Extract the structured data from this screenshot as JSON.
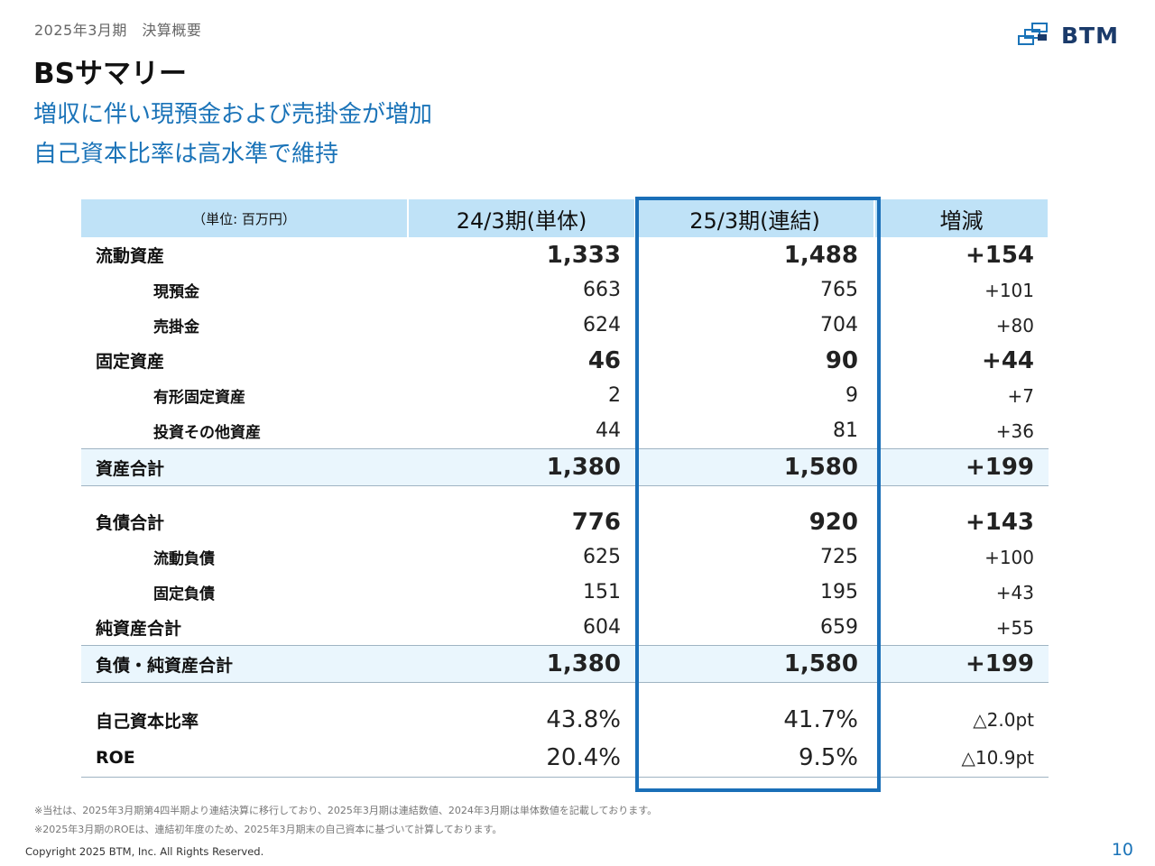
{
  "header": {
    "breadcrumb": "2025年3月期　決算概要",
    "title": "BSサマリー",
    "headline_1": "増収に伴い現預金および売掛金が増加",
    "headline_2": "自己資本比率は高水準で維持",
    "logo_text": "BTM"
  },
  "table": {
    "columns": [
      "（単位: 百万円）",
      "24/3期(単体)",
      "25/3期(連結)",
      "増減"
    ],
    "rows": [
      {
        "label": "流動資産",
        "v1": "1,333",
        "v2": "1,488",
        "diff": "+154"
      },
      {
        "label": "現預金",
        "v1": "663",
        "v2": "765",
        "diff": "+101"
      },
      {
        "label": "売掛金",
        "v1": "624",
        "v2": "704",
        "diff": "+80"
      },
      {
        "label": "固定資産",
        "v1": "46",
        "v2": "90",
        "diff": "+44"
      },
      {
        "label": "有形固定資産",
        "v1": "2",
        "v2": "9",
        "diff": "+7"
      },
      {
        "label": "投資その他資産",
        "v1": "44",
        "v2": "81",
        "diff": "+36"
      },
      {
        "label": "資産合計",
        "v1": "1,380",
        "v2": "1,580",
        "diff": "+199"
      },
      {
        "label": "負債合計",
        "v1": "776",
        "v2": "920",
        "diff": "+143"
      },
      {
        "label": "流動負債",
        "v1": "625",
        "v2": "725",
        "diff": "+100"
      },
      {
        "label": "固定負債",
        "v1": "151",
        "v2": "195",
        "diff": "+43"
      },
      {
        "label": "純資産合計",
        "v1": "604",
        "v2": "659",
        "diff": "+55"
      },
      {
        "label": "負債・純資産合計",
        "v1": "1,380",
        "v2": "1,580",
        "diff": "+199"
      },
      {
        "label": "自己資本比率",
        "v1": "43.8%",
        "v2": "41.7%",
        "diff": "△2.0pt"
      },
      {
        "label": "ROE",
        "v1": "20.4%",
        "v2": "9.5%",
        "diff": "△10.9pt"
      }
    ]
  },
  "footnotes": [
    "※当社は、2025年3月期第4四半期より連結決算に移行しており、2025年3月期は連結数値、2024年3月期は単体数値を記載しております。",
    "※2025年3月期のROEは、連結初年度のため、2025年3月期末の自己資本に基づいて計算しております。"
  ],
  "footer": {
    "copyright": "Copyright 2025 BTM, Inc. All Rights Reserved.",
    "page_number": "10"
  },
  "colors": {
    "accent": "#1a73b8",
    "header_bg": "#bfe2f7",
    "total_bg": "#eaf6fd",
    "highlight_border": "#1a6fb8"
  }
}
